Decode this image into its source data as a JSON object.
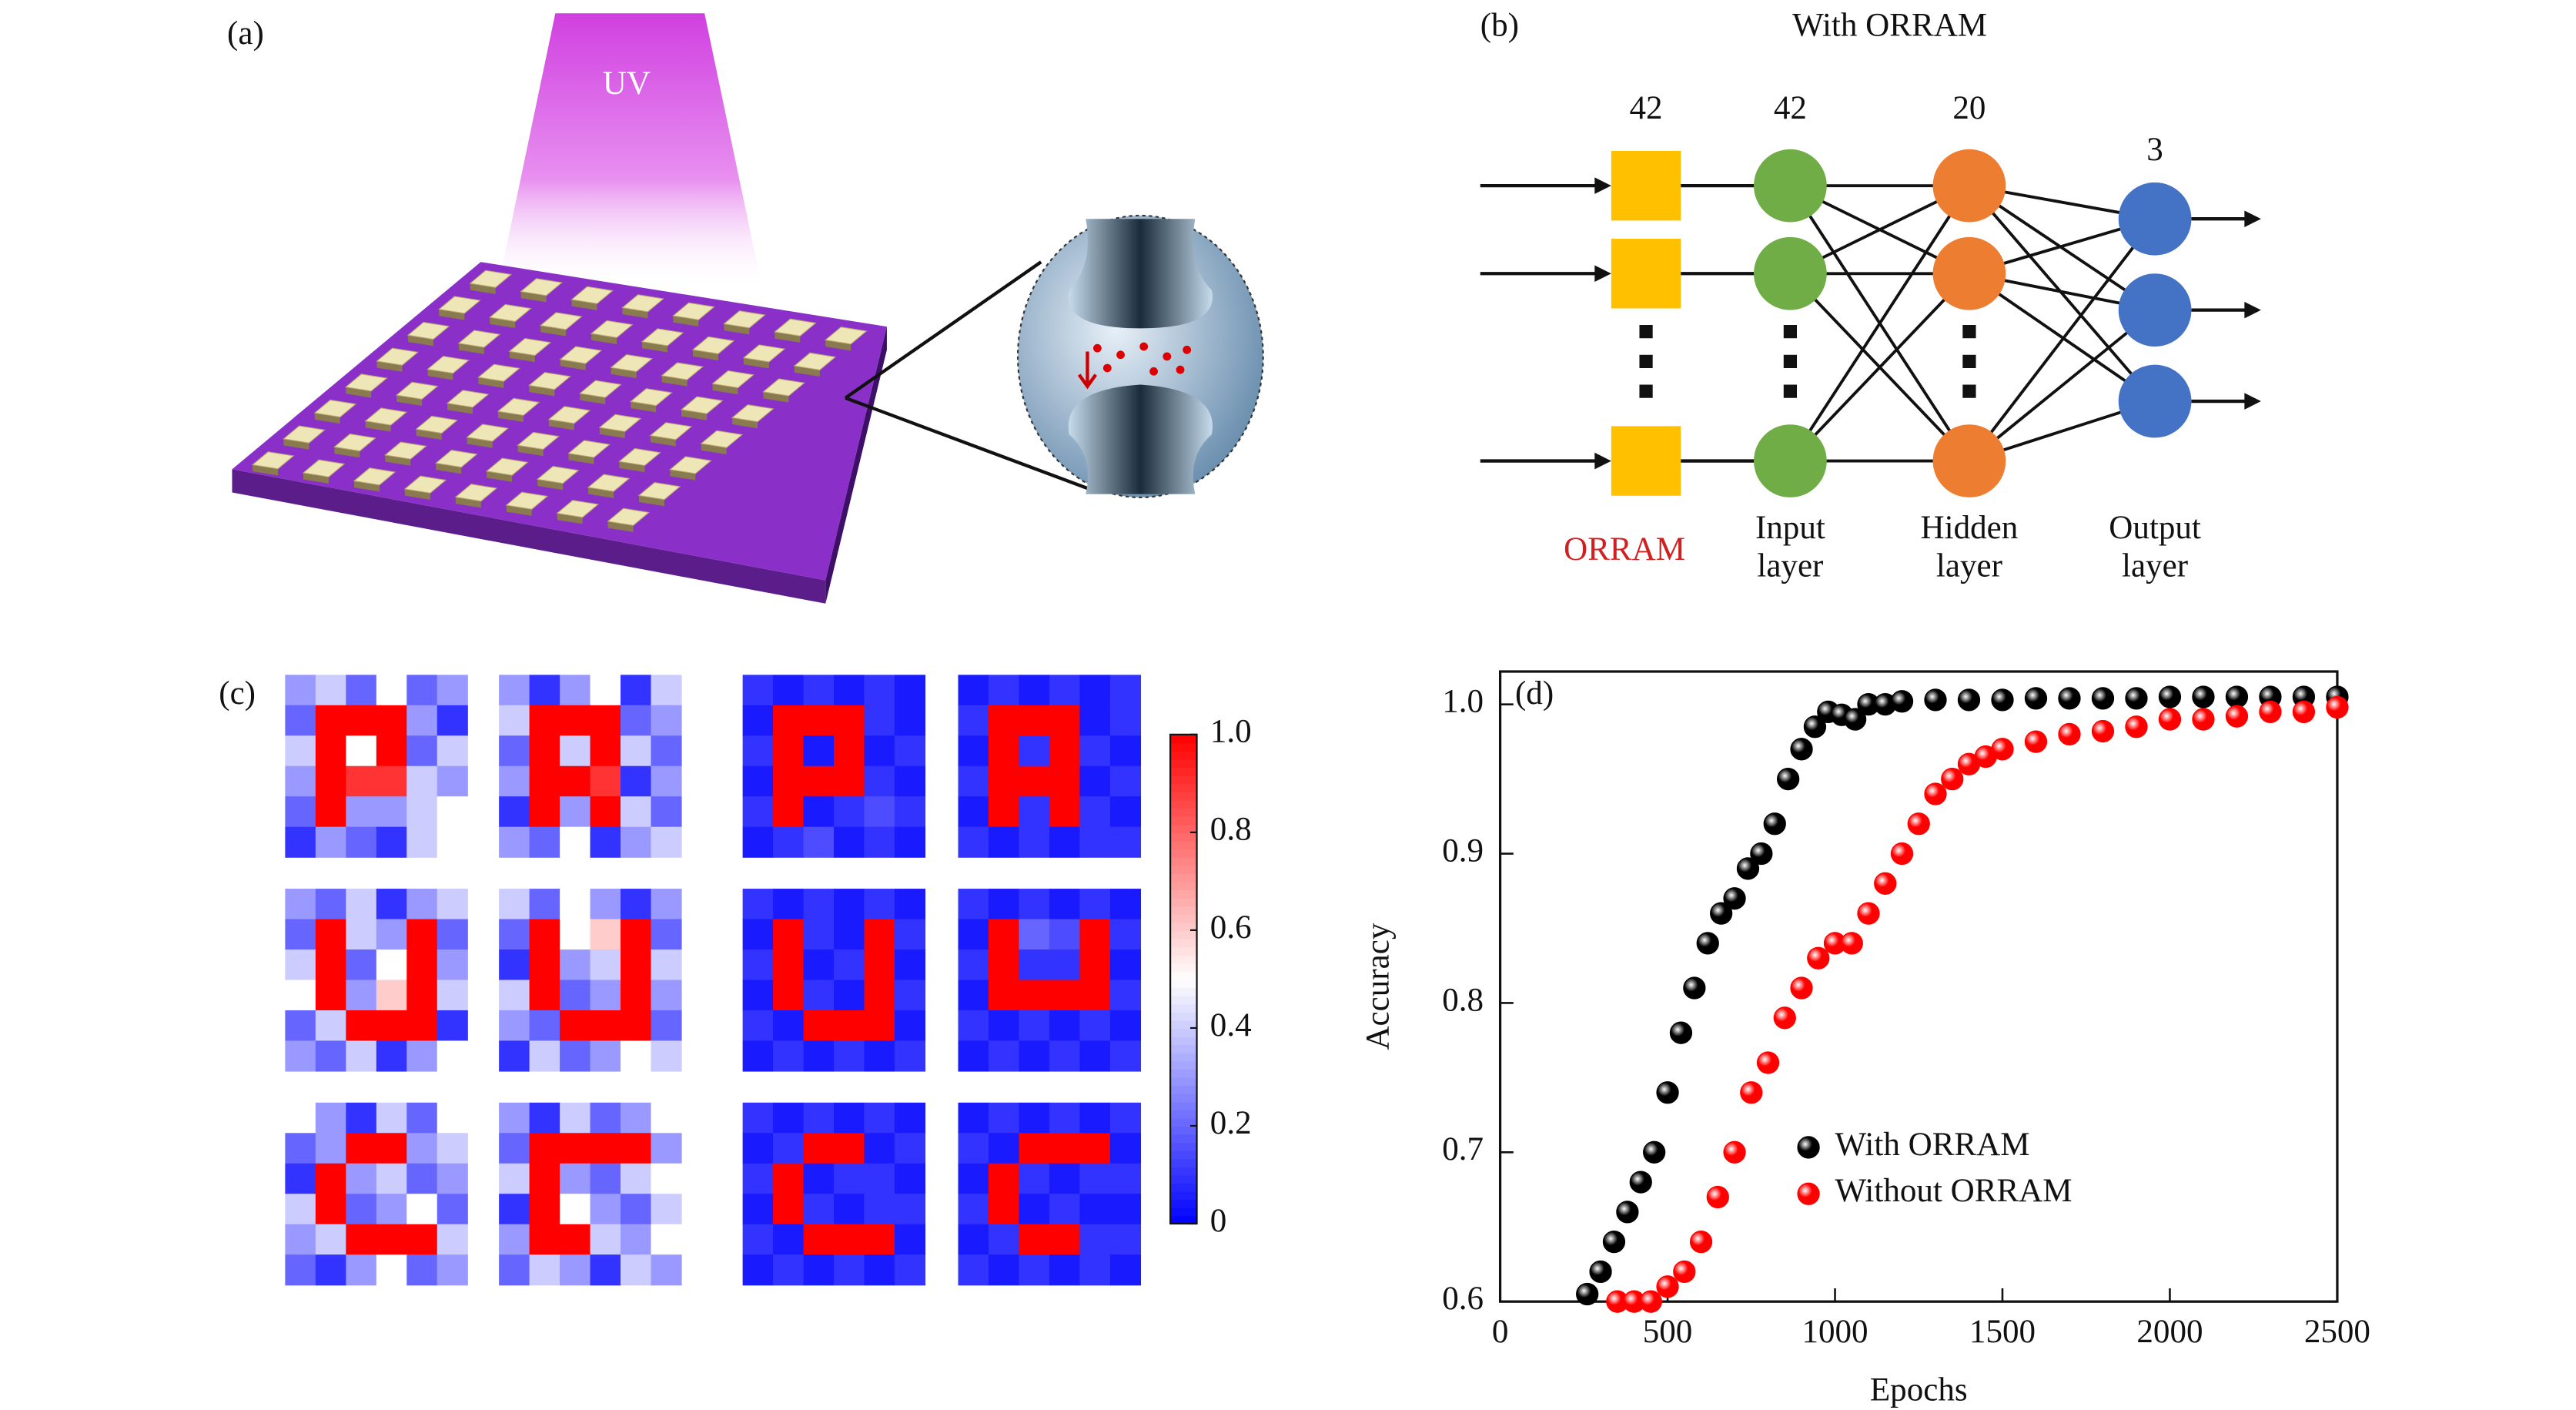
{
  "panel_a": {
    "label": "(a)",
    "uv": "UV"
  },
  "panel_b": {
    "label": "(b)",
    "title": "With ORRAM",
    "counts": [
      42,
      42,
      20,
      3
    ],
    "layers": [
      {
        "lines": [
          "ORRAM"
        ]
      },
      {
        "lines": [
          "Input",
          "layer"
        ]
      },
      {
        "lines": [
          "Hidden",
          "layer"
        ]
      },
      {
        "lines": [
          "Output",
          "layer"
        ]
      }
    ]
  },
  "chart_data": [
    {
      "type": "heatmap",
      "label": "(c)",
      "colors": [
        "#0000ff",
        "#ffffff",
        "#ff0000"
      ],
      "clim": [
        0,
        1
      ],
      "cticks": [
        0,
        0.2,
        0.4,
        0.6,
        0.8,
        {
          "value": 1,
          "label": "1.0"
        }
      ],
      "tiles": [
        [
          [
            0.3,
            0.4,
            0.2,
            0.5,
            0.2,
            0.3
          ],
          [
            0.2,
            1,
            1,
            1,
            0.3,
            0.1
          ],
          [
            0.4,
            1,
            0.5,
            1,
            0.2,
            0.4
          ],
          [
            0.3,
            1,
            0.9,
            0.9,
            0.4,
            0.3
          ],
          [
            0.2,
            1,
            0.3,
            0.3,
            0.4,
            0.5
          ],
          [
            0.1,
            0.3,
            0.2,
            0.1,
            0.4,
            0.5
          ]
        ],
        [
          [
            0.3,
            0.1,
            0.3,
            0.5,
            0.1,
            0.4
          ],
          [
            0.4,
            1,
            1,
            1,
            0.2,
            0.3
          ],
          [
            0.2,
            1,
            0.4,
            1,
            0.4,
            0.2
          ],
          [
            0.3,
            1,
            1,
            0.9,
            0.1,
            0.3
          ],
          [
            0.1,
            1,
            0.3,
            1,
            0.4,
            0.2
          ],
          [
            0.3,
            0.2,
            0.5,
            0.1,
            0.3,
            0.4
          ]
        ],
        [
          [
            0.1,
            0.05,
            0.1,
            0.05,
            0.1,
            0.05
          ],
          [
            0.05,
            1,
            1,
            1,
            0.1,
            0.05
          ],
          [
            0.1,
            1,
            0.05,
            1,
            0.05,
            0.1
          ],
          [
            0.05,
            1,
            1,
            1,
            0.1,
            0.05
          ],
          [
            0.1,
            1,
            0.05,
            0.1,
            0.15,
            0.1
          ],
          [
            0.05,
            0.1,
            0.15,
            0.05,
            0.1,
            0.05
          ]
        ],
        [
          [
            0.05,
            0.1,
            0.05,
            0.1,
            0.05,
            0.1
          ],
          [
            0.1,
            1,
            1,
            1,
            0.05,
            0.1
          ],
          [
            0.05,
            1,
            0.1,
            1,
            0.1,
            0.05
          ],
          [
            0.1,
            1,
            1,
            1,
            0.05,
            0.1
          ],
          [
            0.05,
            1,
            0.1,
            1,
            0.1,
            0.05
          ],
          [
            0.1,
            0.05,
            0.1,
            0.05,
            0.1,
            0.1
          ]
        ],
        [
          [
            0.3,
            0.2,
            0.4,
            0.1,
            0.3,
            0.4
          ],
          [
            0.2,
            1,
            0.4,
            0.3,
            1,
            0.2
          ],
          [
            0.4,
            1,
            0.2,
            0.5,
            1,
            0.3
          ],
          [
            0.5,
            1,
            0.3,
            0.6,
            1,
            0.4
          ],
          [
            0.2,
            0.4,
            1,
            1,
            1,
            0.1
          ],
          [
            0.3,
            0.2,
            0.4,
            0.1,
            0.3,
            0.5
          ]
        ],
        [
          [
            0.4,
            0.2,
            0.5,
            0.3,
            0.1,
            0.3
          ],
          [
            0.2,
            1,
            0.5,
            0.6,
            1,
            0.2
          ],
          [
            0.1,
            1,
            0.3,
            0.4,
            1,
            0.4
          ],
          [
            0.4,
            1,
            0.2,
            0.3,
            1,
            0.3
          ],
          [
            0.3,
            0.2,
            1,
            1,
            1,
            0.2
          ],
          [
            0.1,
            0.4,
            0.2,
            0.3,
            0.5,
            0.4
          ]
        ],
        [
          [
            0.1,
            0.05,
            0.1,
            0.05,
            0.1,
            0.05
          ],
          [
            0.05,
            1,
            0.1,
            0.05,
            1,
            0.1
          ],
          [
            0.1,
            1,
            0.05,
            0.1,
            1,
            0.05
          ],
          [
            0.05,
            1,
            0.1,
            0.05,
            1,
            0.1
          ],
          [
            0.1,
            0.05,
            1,
            1,
            1,
            0.05
          ],
          [
            0.05,
            0.1,
            0.05,
            0.1,
            0.05,
            0.1
          ]
        ],
        [
          [
            0.1,
            0.05,
            0.1,
            0.05,
            0.1,
            0.05
          ],
          [
            0.05,
            1,
            0.2,
            0.15,
            1,
            0.1
          ],
          [
            0.1,
            1,
            0.1,
            0.1,
            1,
            0.05
          ],
          [
            0.05,
            1,
            1,
            1,
            1,
            0.1
          ],
          [
            0.1,
            0.05,
            0.1,
            0.05,
            0.1,
            0.05
          ],
          [
            0.05,
            0.1,
            0.05,
            0.1,
            0.05,
            0.1
          ]
        ],
        [
          [
            0.5,
            0.3,
            0.1,
            0.4,
            0.2,
            0.5
          ],
          [
            0.2,
            0.3,
            1,
            1,
            0.3,
            0.4
          ],
          [
            0.1,
            1,
            0.3,
            0.4,
            0.2,
            0.3
          ],
          [
            0.4,
            1,
            0.2,
            0.3,
            0.5,
            0.2
          ],
          [
            0.3,
            0.4,
            1,
            1,
            1,
            0.4
          ],
          [
            0.2,
            0.1,
            0.3,
            0.5,
            0.2,
            0.3
          ]
        ],
        [
          [
            0.3,
            0.1,
            0.4,
            0.2,
            0.3,
            0.5
          ],
          [
            0.2,
            1,
            1,
            1,
            1,
            0.3
          ],
          [
            0.4,
            1,
            0.3,
            0.2,
            0.4,
            0.5
          ],
          [
            0.1,
            1,
            0.5,
            0.3,
            0.2,
            0.4
          ],
          [
            0.3,
            1,
            1,
            0.4,
            0.3,
            0.5
          ],
          [
            0.2,
            0.4,
            0.3,
            0.1,
            0.4,
            0.3
          ]
        ],
        [
          [
            0.1,
            0.05,
            0.1,
            0.05,
            0.1,
            0.05
          ],
          [
            0.05,
            0.1,
            1,
            1,
            0.05,
            0.1
          ],
          [
            0.1,
            1,
            0.05,
            0.1,
            0.1,
            0.05
          ],
          [
            0.05,
            1,
            0.1,
            0.05,
            0.1,
            0.1
          ],
          [
            0.1,
            0.05,
            1,
            1,
            1,
            0.05
          ],
          [
            0.05,
            0.1,
            0.05,
            0.1,
            0.05,
            0.1
          ]
        ],
        [
          [
            0.05,
            0.1,
            0.05,
            0.1,
            0.05,
            0.1
          ],
          [
            0.1,
            0.05,
            1,
            1,
            1,
            0.05
          ],
          [
            0.05,
            1,
            0.1,
            0.05,
            0.1,
            0.1
          ],
          [
            0.1,
            1,
            0.05,
            0.1,
            0.05,
            0.05
          ],
          [
            0.05,
            0.1,
            1,
            1,
            0.1,
            0.1
          ],
          [
            0.1,
            0.05,
            0.1,
            0.05,
            0.1,
            0.05
          ]
        ]
      ]
    },
    {
      "type": "scatter",
      "label": "(d)",
      "xlabel": "Epochs",
      "ylabel": "Accuracy",
      "xlim": [
        0,
        2500
      ],
      "ylim": [
        0.6,
        1.022
      ],
      "xticks": [
        0,
        500,
        1000,
        1500,
        2000,
        2500
      ],
      "yticks": [
        0.6,
        0.7,
        0.8,
        0.9,
        {
          "value": 1,
          "label": "1.0"
        }
      ],
      "legend": "lower right",
      "series": [
        {
          "name": "With ORRAM",
          "color": "#000000",
          "x": [
            260,
            300,
            340,
            380,
            420,
            460,
            500,
            540,
            580,
            620,
            660,
            700,
            740,
            780,
            820,
            860,
            900,
            940,
            980,
            1020,
            1060,
            1100,
            1150,
            1200,
            1300,
            1400,
            1500,
            1600,
            1700,
            1800,
            1900,
            2000,
            2100,
            2200,
            2300,
            2400,
            2500
          ],
          "values": [
            0.605,
            0.62,
            0.64,
            0.66,
            0.68,
            0.7,
            0.74,
            0.78,
            0.81,
            0.84,
            0.86,
            0.87,
            0.89,
            0.9,
            0.92,
            0.95,
            0.97,
            0.985,
            0.995,
            0.993,
            0.99,
            1.0,
            1.0,
            1.002,
            1.003,
            1.003,
            1.003,
            1.004,
            1.004,
            1.004,
            1.004,
            1.005,
            1.005,
            1.005,
            1.005,
            1.005,
            1.005
          ]
        },
        {
          "name": "Without ORRAM",
          "color": "#ff0000",
          "x": [
            350,
            400,
            450,
            500,
            550,
            600,
            650,
            700,
            750,
            800,
            850,
            900,
            950,
            1000,
            1050,
            1100,
            1150,
            1200,
            1250,
            1300,
            1350,
            1400,
            1450,
            1500,
            1600,
            1700,
            1800,
            1900,
            2000,
            2100,
            2200,
            2300,
            2400,
            2500
          ],
          "values": [
            0.6,
            0.6,
            0.6,
            0.61,
            0.62,
            0.64,
            0.67,
            0.7,
            0.74,
            0.76,
            0.79,
            0.81,
            0.83,
            0.84,
            0.84,
            0.86,
            0.88,
            0.9,
            0.92,
            0.94,
            0.95,
            0.96,
            0.965,
            0.97,
            0.975,
            0.98,
            0.982,
            0.985,
            0.99,
            0.99,
            0.992,
            0.995,
            0.995,
            0.998
          ]
        }
      ]
    }
  ]
}
